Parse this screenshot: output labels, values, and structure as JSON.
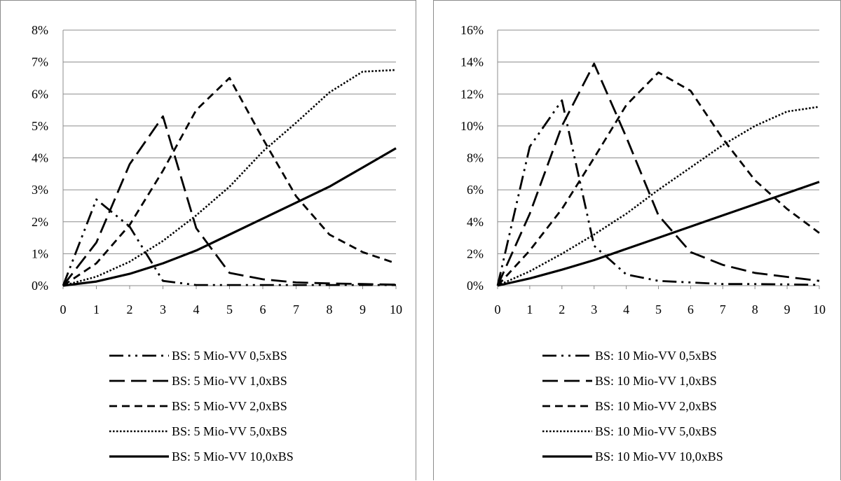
{
  "chart_data": [
    {
      "type": "line",
      "ylim": [
        0,
        8
      ],
      "xlim": [
        0,
        10
      ],
      "y_ticks": [
        "0%",
        "1%",
        "2%",
        "3%",
        "4%",
        "5%",
        "6%",
        "7%",
        "8%"
      ],
      "x_ticks": [
        "0",
        "1",
        "2",
        "3",
        "4",
        "5",
        "6",
        "7",
        "8",
        "9",
        "10"
      ],
      "grid": "horizontal",
      "legend_position": "bottom",
      "series": [
        {
          "name": "BS: 5 Mio-VV 0,5xBS",
          "dash": "dash-dot-dot",
          "x": [
            0,
            1,
            2,
            3,
            4,
            5,
            6,
            7,
            8,
            9,
            10
          ],
          "y": [
            0,
            2.7,
            1.85,
            0.15,
            0.02,
            0.02,
            0.02,
            0.02,
            0.02,
            0.02,
            0.02
          ]
        },
        {
          "name": "BS: 5 Mio-VV 1,0xBS",
          "dash": "long-dash",
          "x": [
            0,
            1,
            2,
            3,
            4,
            5,
            6,
            7,
            8,
            9,
            10
          ],
          "y": [
            0,
            1.35,
            3.8,
            5.3,
            1.8,
            0.4,
            0.2,
            0.1,
            0.07,
            0.05,
            0.03
          ]
        },
        {
          "name": "BS: 5 Mio-VV 2,0xBS",
          "dash": "dash",
          "x": [
            0,
            1,
            2,
            3,
            4,
            5,
            6,
            7,
            8,
            9,
            10
          ],
          "y": [
            0,
            0.7,
            1.9,
            3.6,
            5.5,
            6.5,
            4.6,
            2.8,
            1.6,
            1.05,
            0.7
          ]
        },
        {
          "name": "BS: 5 Mio-VV 5,0xBS",
          "dash": "dotted",
          "x": [
            0,
            1,
            2,
            3,
            4,
            5,
            6,
            7,
            8,
            9,
            10
          ],
          "y": [
            0,
            0.28,
            0.75,
            1.4,
            2.2,
            3.1,
            4.2,
            5.1,
            6.05,
            6.7,
            6.75
          ]
        },
        {
          "name": "BS: 5 Mio-VV 10,0xBS",
          "dash": "solid",
          "x": [
            0,
            1,
            2,
            3,
            4,
            5,
            6,
            7,
            8,
            9,
            10
          ],
          "y": [
            0,
            0.13,
            0.37,
            0.7,
            1.1,
            1.6,
            2.1,
            2.6,
            3.1,
            3.7,
            4.3
          ]
        }
      ]
    },
    {
      "type": "line",
      "ylim": [
        0,
        16
      ],
      "xlim": [
        0,
        10
      ],
      "y_ticks": [
        "0%",
        "2%",
        "4%",
        "6%",
        "8%",
        "10%",
        "12%",
        "14%",
        "16%"
      ],
      "x_ticks": [
        "0",
        "1",
        "2",
        "3",
        "4",
        "5",
        "6",
        "7",
        "8",
        "9",
        "10"
      ],
      "grid": "horizontal",
      "legend_position": "bottom",
      "series": [
        {
          "name": "BS: 10 Mio-VV 0,5xBS",
          "dash": "dash-dot-dot",
          "x": [
            0,
            1,
            2,
            3,
            4,
            5,
            6,
            7,
            8,
            9,
            10
          ],
          "y": [
            0,
            8.7,
            11.6,
            2.5,
            0.7,
            0.3,
            0.2,
            0.1,
            0.1,
            0.08,
            0.05
          ]
        },
        {
          "name": "BS: 10 Mio-VV 1,0xBS",
          "dash": "long-dash",
          "x": [
            0,
            1,
            2,
            3,
            4,
            5,
            6,
            7,
            8,
            9,
            10
          ],
          "y": [
            0,
            4.5,
            10.0,
            13.9,
            9.3,
            4.4,
            2.1,
            1.3,
            0.8,
            0.55,
            0.3
          ]
        },
        {
          "name": "BS: 10 Mio-VV 2,0xBS",
          "dash": "dash",
          "x": [
            0,
            1,
            2,
            3,
            4,
            5,
            6,
            7,
            8,
            9,
            10
          ],
          "y": [
            0,
            2.2,
            4.8,
            8.0,
            11.3,
            13.35,
            12.2,
            9.2,
            6.6,
            4.8,
            3.3
          ]
        },
        {
          "name": "BS: 10 Mio-VV 5,0xBS",
          "dash": "dotted",
          "x": [
            0,
            1,
            2,
            3,
            4,
            5,
            6,
            7,
            8,
            9,
            10
          ],
          "y": [
            0,
            0.9,
            2.0,
            3.2,
            4.5,
            6.0,
            7.4,
            8.8,
            10.0,
            10.9,
            11.2
          ]
        },
        {
          "name": "BS: 10 Mio-VV 10,0xBS",
          "dash": "solid",
          "x": [
            0,
            1,
            2,
            3,
            4,
            5,
            6,
            7,
            8,
            9,
            10
          ],
          "y": [
            0,
            0.45,
            1.0,
            1.6,
            2.3,
            3.0,
            3.7,
            4.4,
            5.1,
            5.8,
            6.5
          ]
        }
      ]
    }
  ]
}
